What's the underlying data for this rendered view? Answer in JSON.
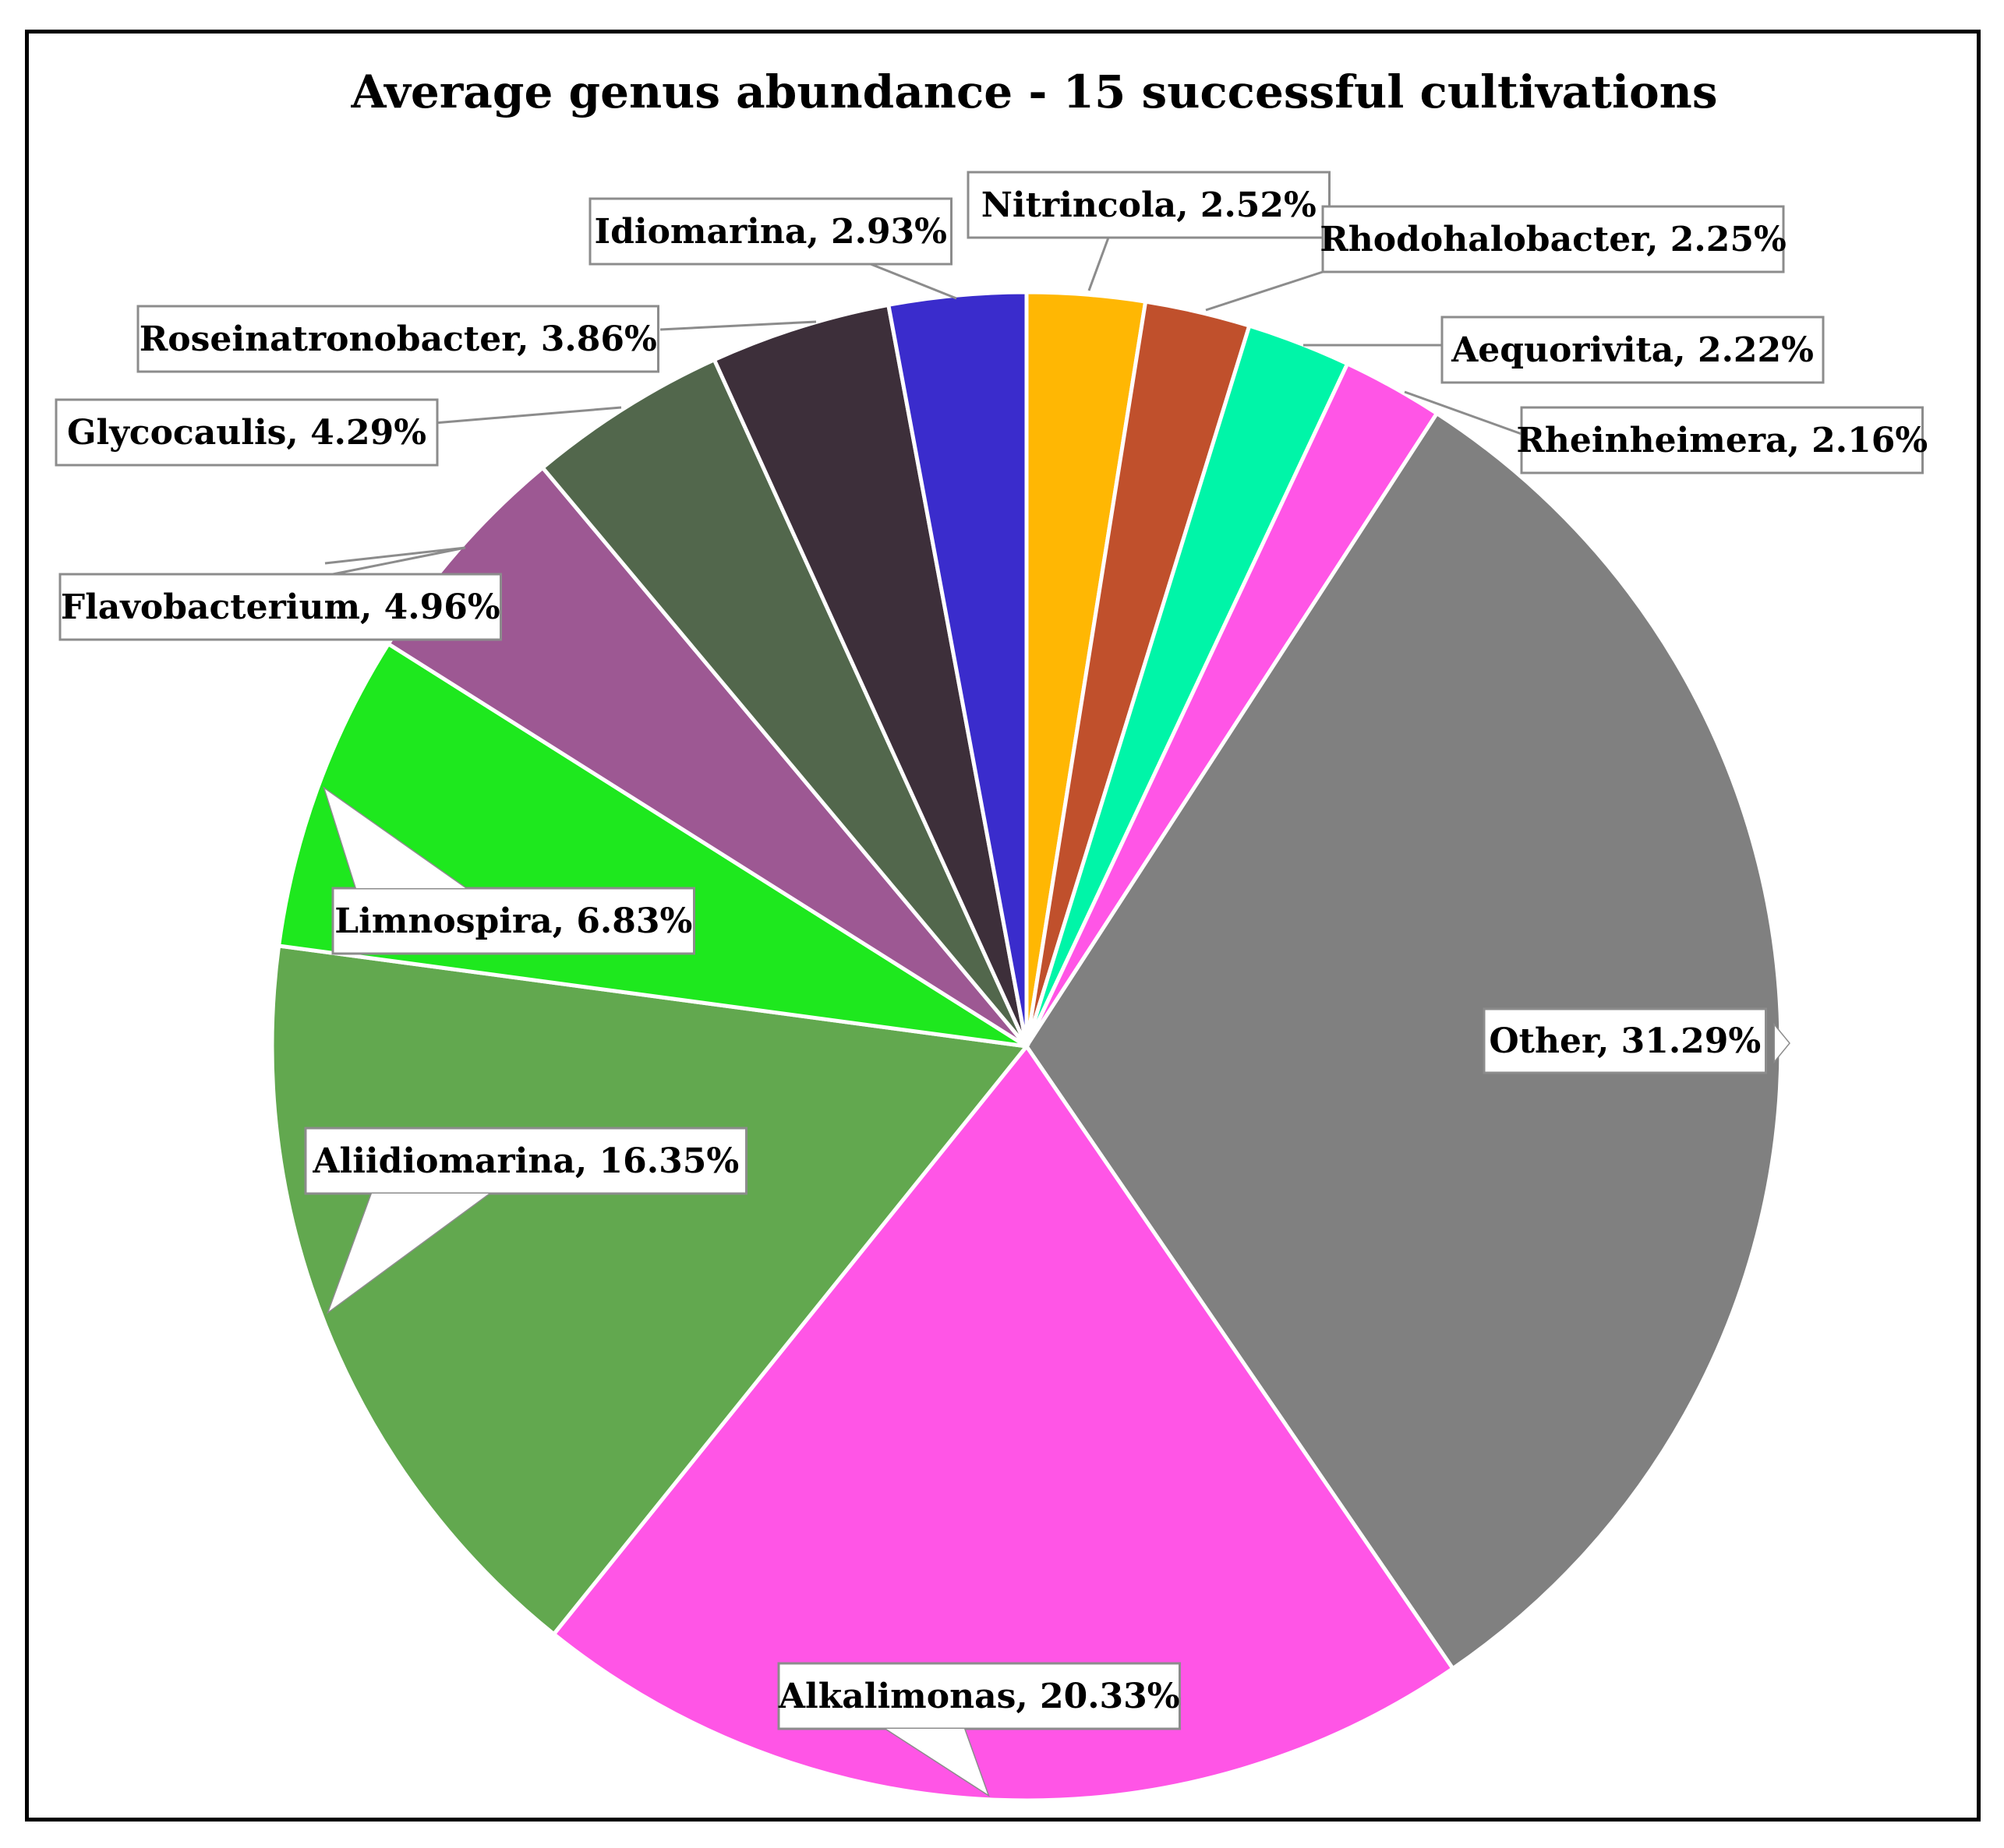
{
  "chart_data": {
    "type": "pie",
    "title": "Average genus abundance - 15 successful cultivations",
    "slices": [
      {
        "label": "Nitrincola",
        "value": 2.52,
        "color": "#FFB703",
        "display": "Nitrincola, 2.52%"
      },
      {
        "label": "Rhodohalobacter",
        "value": 2.25,
        "color": "#C0502C",
        "display": "Rhodohalobacter, 2.25%"
      },
      {
        "label": "Aequorivita",
        "value": 2.22,
        "color": "#00F5A8",
        "display": "Aequorivita, 2.22%"
      },
      {
        "label": "Rheinheimera",
        "value": 2.16,
        "color": "#FF55E6",
        "display": "Rheinheimera, 2.16%"
      },
      {
        "label": "Other",
        "value": 31.29,
        "color": "#808080",
        "display": "Other, 31.29%"
      },
      {
        "label": "Alkalimonas",
        "value": 20.33,
        "color": "#FF55E6",
        "display": "Alkalimonas, 20.33%"
      },
      {
        "label": "Aliidiomarina",
        "value": 16.35,
        "color": "#62A84F",
        "display": "Aliidiomarina, 16.35%"
      },
      {
        "label": "Limnospira",
        "value": 6.83,
        "color": "#1EE81E",
        "display": "Limnospira, 6.83%"
      },
      {
        "label": "Flavobacterium",
        "value": 4.96,
        "color": "#9D5893",
        "display": "Flavobacterium, 4.96%"
      },
      {
        "label": "Glycocaulis",
        "value": 4.29,
        "color": "#52674C",
        "display": "Glycocaulis, 4.29%"
      },
      {
        "label": "Roseinatronobacter",
        "value": 3.86,
        "color": "#3D2F3A",
        "display": "Roseinatronobacter, 3.86%"
      },
      {
        "label": "Idiomarina",
        "value": 2.93,
        "color": "#3A2CCC",
        "display": "Idiomarina, 2.93%"
      }
    ],
    "start_angle": "12 o'clock",
    "direction": "clockwise",
    "legend": "none",
    "data_labels": "callouts with category name and percentage"
  }
}
